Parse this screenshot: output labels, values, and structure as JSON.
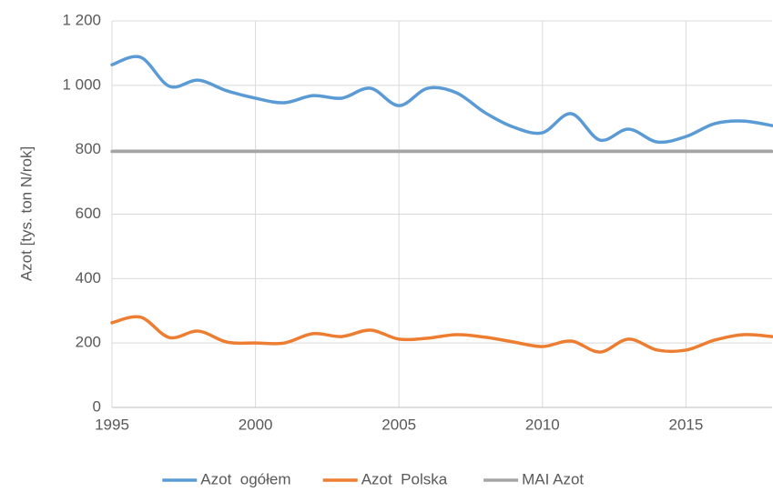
{
  "chart_data": {
    "type": "line",
    "y_label": "Azot [tys. ton N/rok]",
    "x": [
      1995,
      1996,
      1997,
      1998,
      1999,
      2000,
      2001,
      2002,
      2003,
      2004,
      2005,
      2006,
      2007,
      2008,
      2009,
      2010,
      2011,
      2012,
      2013,
      2014,
      2015,
      2016,
      2017,
      2018
    ],
    "series": [
      {
        "name": "Azot  ogółem",
        "color": "#5b9bd5",
        "values": [
          1064,
          1087,
          997,
          1016,
          983,
          960,
          946,
          968,
          960,
          991,
          937,
          991,
          977,
          915,
          870,
          853,
          912,
          830,
          864,
          824,
          841,
          881,
          889,
          875
        ]
      },
      {
        "name": "Azot  Polska",
        "color": "#ed7d31",
        "values": [
          263,
          280,
          217,
          237,
          203,
          200,
          200,
          229,
          220,
          240,
          212,
          215,
          226,
          218,
          203,
          189,
          206,
          172,
          212,
          178,
          178,
          209,
          226,
          220
        ]
      },
      {
        "name": "MAI Azot",
        "color": "#a5a5a5",
        "values": [
          795,
          795,
          795,
          795,
          795,
          795,
          795,
          795,
          795,
          795,
          795,
          795,
          795,
          795,
          795,
          795,
          795,
          795,
          795,
          795,
          795,
          795,
          795,
          795
        ]
      }
    ],
    "xlim": [
      1995,
      2018
    ],
    "xticks": [
      1995,
      2000,
      2005,
      2010,
      2015
    ],
    "ylim": [
      0,
      1200
    ],
    "yticks": [
      0,
      200,
      400,
      600,
      800,
      {
        "value": 1000,
        "label": "1 000"
      },
      {
        "value": 1200,
        "label": "1 200"
      }
    ],
    "grid": true,
    "smooth": true,
    "legend": "bottom"
  }
}
